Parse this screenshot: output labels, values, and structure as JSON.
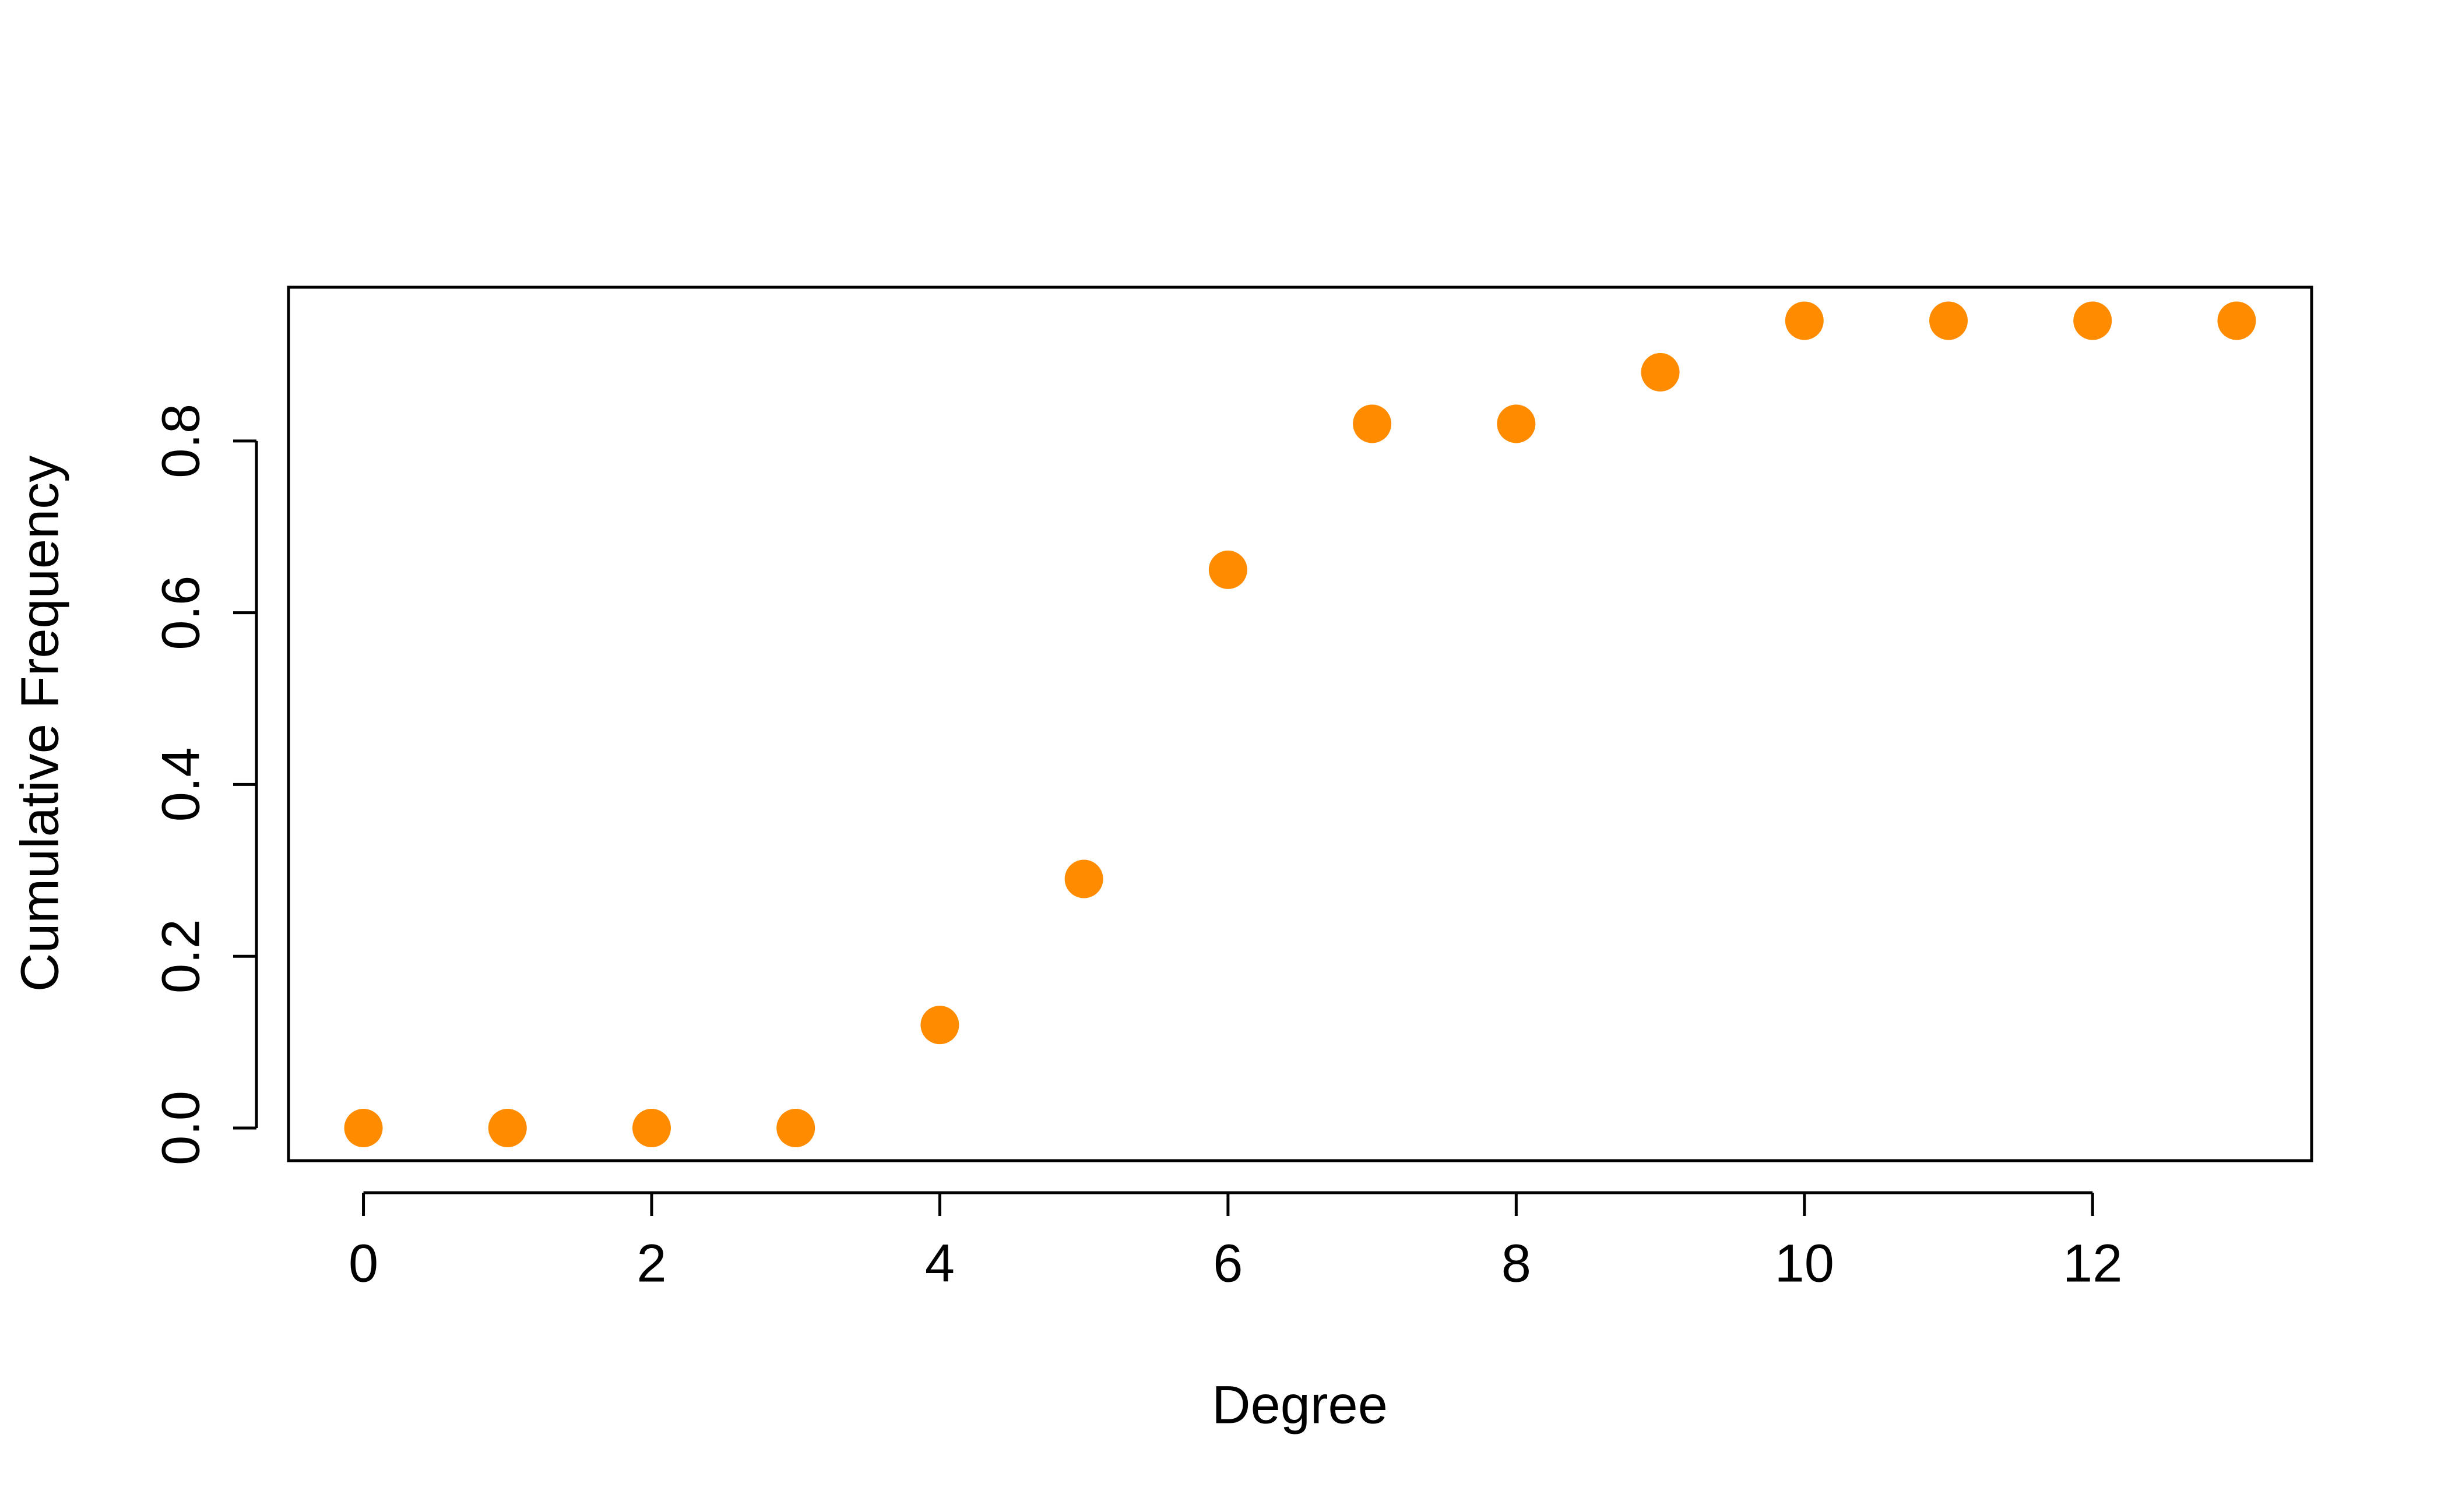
{
  "chart_data": {
    "type": "scatter",
    "x_label": "Degree",
    "y_label": "Cumulative Frequency",
    "x": [
      0,
      1,
      2,
      3,
      4,
      5,
      6,
      7,
      8,
      9,
      10,
      11,
      12,
      13
    ],
    "series": [
      {
        "color": "#ff8c00",
        "values": [
          0,
          0,
          0,
          0,
          0.12,
          0.29,
          0.65,
          0.82,
          0.82,
          0.88,
          0.94,
          0.94,
          0.94,
          0.94
        ]
      }
    ],
    "xlim": [
      -0.52,
      13.52
    ],
    "ylim": [
      -0.038,
      0.979
    ],
    "xticks": [
      0,
      2,
      4,
      6,
      8,
      10,
      12
    ],
    "yticks": [
      {
        "value": 0,
        "label": "0.0"
      },
      0.2,
      0.4,
      0.6,
      0.8
    ]
  }
}
